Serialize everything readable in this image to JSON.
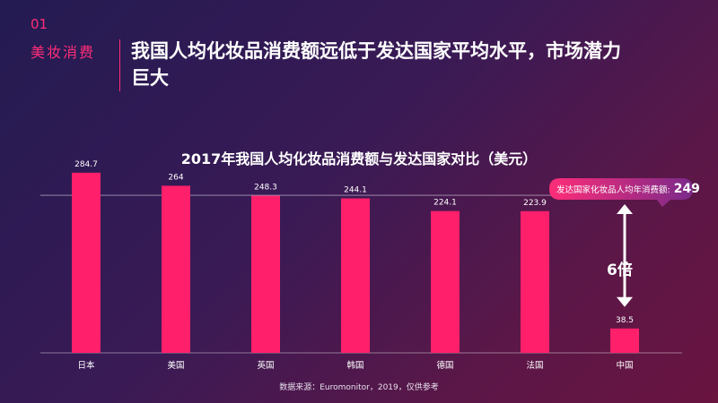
{
  "section": {
    "number": "01",
    "label": "美妆消费"
  },
  "headline": "我国人均化妆品消费额远低于发达国家平均水平，市场潜力巨大",
  "chart_data": {
    "type": "bar",
    "title": "2017年我国人均化妆品消费额与发达国家对比（美元）",
    "categories": [
      "日本",
      "美国",
      "英国",
      "韩国",
      "德国",
      "法国",
      "中国"
    ],
    "values": [
      284.7,
      264,
      248.3,
      244.1,
      224.1,
      223.9,
      38.5
    ],
    "value_labels": [
      "284.7",
      "264",
      "248.3",
      "244.1",
      "224.1",
      "223.9",
      "38.5"
    ],
    "ylim": [
      0,
      300
    ],
    "grid": false,
    "bar_color": "#ff1f6b",
    "reference_line": {
      "value": 249,
      "label": "发达国家化妆品人均年消费额:",
      "value_text": "249"
    },
    "annotation": "6倍"
  },
  "source": "数据来源：Euromonitor，2019，仅供参考",
  "colors": {
    "accent": "#ff2d78",
    "bar": "#ff1f6b"
  }
}
